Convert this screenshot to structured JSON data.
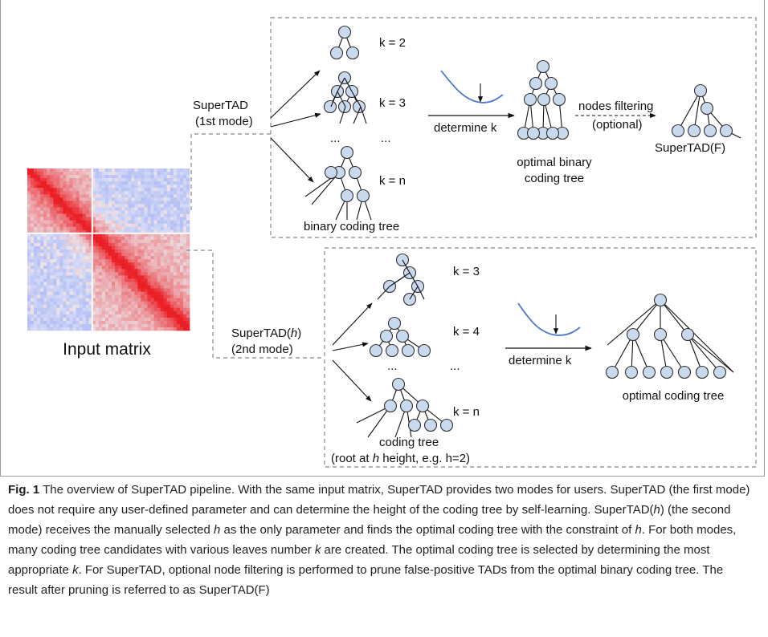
{
  "input": {
    "label": "Input matrix"
  },
  "mode1": {
    "label_line1": "SuperTAD",
    "label_line2": "(1st mode)",
    "k_labels": [
      "k = 2",
      "k = 3",
      "k = n"
    ],
    "dots": "...",
    "dots2": "...",
    "tree_label": "binary coding tree",
    "determine": "determine k",
    "optimal_line1": "optimal binary",
    "optimal_line2": "coding tree",
    "filter_line1": "nodes filtering",
    "filter_line2": "(optional)",
    "filtered_label": "SuperTAD(F)"
  },
  "mode2": {
    "label_prefix": "SuperTAD(",
    "label_h": "h",
    "label_suffix": ")",
    "label_line2": "(2nd mode)",
    "k_labels": [
      "k = 3",
      "k = 4",
      "k = n"
    ],
    "dots": "...",
    "dots2": "...",
    "tree_label": "coding tree",
    "root_prefix": "(root at ",
    "root_h": "h",
    "root_suffix": " height, e.g. h=2)",
    "determine": "determine k",
    "optimal_label": "optimal coding tree"
  },
  "caption": {
    "fig_label": "Fig. 1",
    "p1": "  The overview of SuperTAD pipeline. With the same input matrix, SuperTAD provides two modes for users. SuperTAD (the first mode) does not require any user-defined parameter and can determine the height of the coding tree by self-learning. SuperTAD(",
    "h1": "h",
    "p2": ") (the second mode) receives the manually selected ",
    "h2": "h",
    "p3": " as the only parameter and finds the optimal coding tree with the constraint of ",
    "h3": "h",
    "p4": ". For both modes, many coding tree candidates with various leaves number ",
    "k1": "k",
    "p5": " are created. The optimal coding tree is selected by determining the most appropriate ",
    "k2": "k",
    "p6": ". For SuperTAD, optional node filtering is performed to prune false-positive TADs from the optimal binary coding tree. The result after pruning is referred to as SuperTAD(F)"
  },
  "colors": {
    "node_fill": "#c9d9ee",
    "node_stroke": "#333333",
    "curve": "#4a78d0",
    "matrix_red": "#e8202a",
    "matrix_blue": "#9fb0dc"
  }
}
